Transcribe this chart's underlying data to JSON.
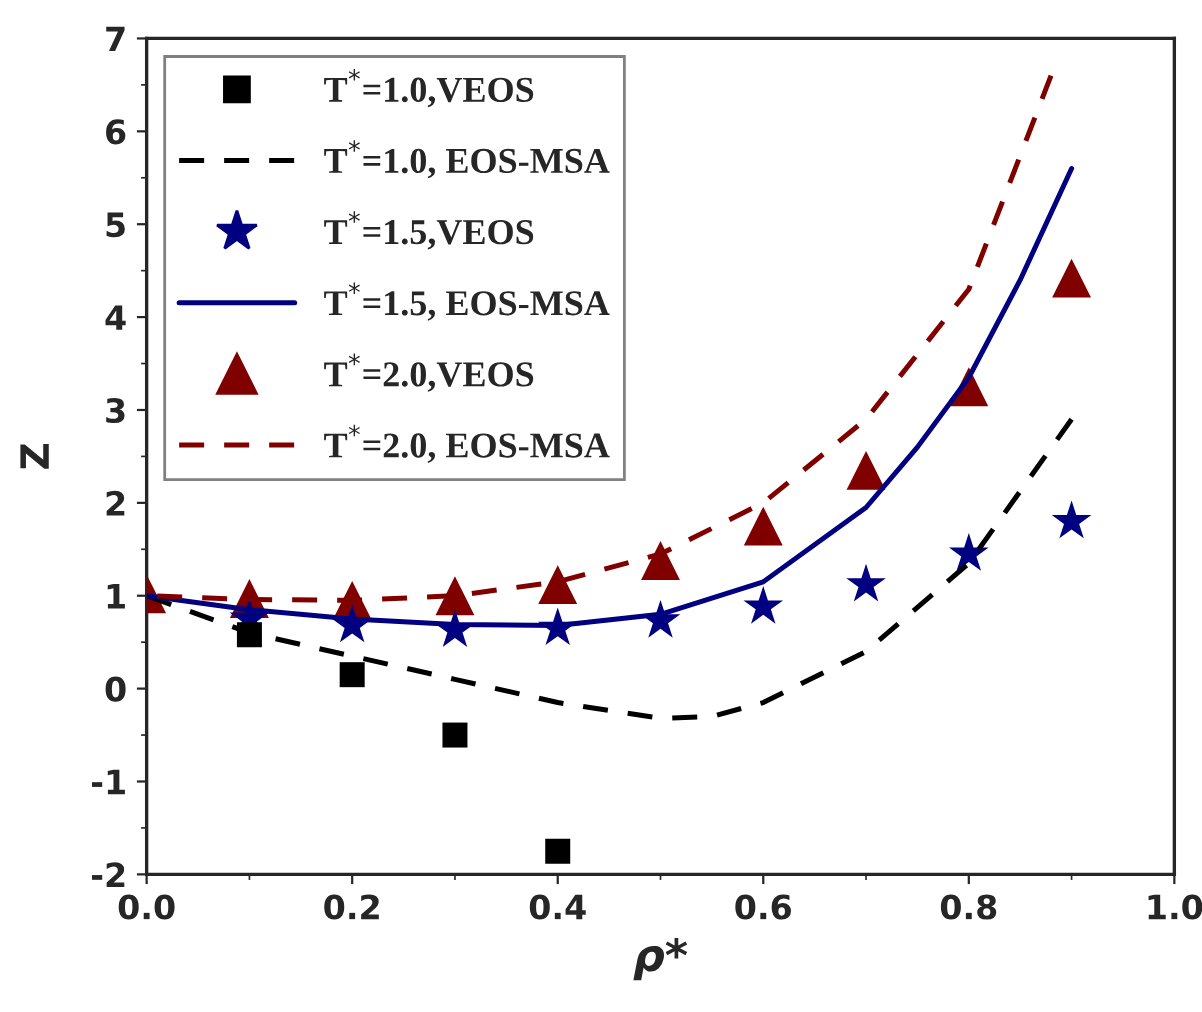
{
  "chart_data": {
    "type": "scatter",
    "xlabel": "ρ*",
    "ylabel": "Z",
    "xlim": [
      0.0,
      1.0
    ],
    "ylim": [
      -2,
      7
    ],
    "xticks": [
      {
        "value": 0.0,
        "label": "0.0"
      },
      {
        "value": 0.2,
        "label": "0.2"
      },
      {
        "value": 0.4,
        "label": "0.4"
      },
      {
        "value": 0.6,
        "label": "0.6"
      },
      {
        "value": 0.8,
        "label": "0.8"
      },
      {
        "value": 1.0,
        "label": "1.0"
      }
    ],
    "yticks": [
      -2,
      -1,
      0,
      1,
      2,
      3,
      4,
      5,
      6,
      7
    ],
    "grid": false,
    "legend": "top left",
    "series": [
      {
        "name": "T$^{*}$=1.0,VEOS",
        "marker": "square",
        "color": "#000000",
        "x": [
          0.1,
          0.2,
          0.3,
          0.4
        ],
        "values": [
          0.58,
          0.15,
          -0.5,
          -1.75
        ]
      },
      {
        "name": "T$^{*}$=1.0, EOS-MSA",
        "type": "line",
        "line_style": "dashed",
        "color": "#000000",
        "x": [
          0.0,
          0.1,
          0.2,
          0.3,
          0.4,
          0.5,
          0.55,
          0.6,
          0.7,
          0.8,
          0.9
        ],
        "values": [
          1.0,
          0.6,
          0.35,
          0.1,
          -0.15,
          -0.32,
          -0.3,
          -0.15,
          0.4,
          1.35,
          2.9
        ]
      },
      {
        "name": "T$^{*}$=1.5,VEOS",
        "marker": "star",
        "color": "#000080",
        "x": [
          0.1,
          0.2,
          0.3,
          0.4,
          0.5,
          0.6,
          0.7,
          0.8,
          0.9
        ],
        "values": [
          0.75,
          0.68,
          0.63,
          0.65,
          0.73,
          0.88,
          1.12,
          1.45,
          1.8
        ]
      },
      {
        "name": "T$^{*}$=1.5, EOS-MSA",
        "type": "line",
        "line_style": "solid",
        "color": "#000080",
        "x": [
          0.0,
          0.1,
          0.2,
          0.3,
          0.4,
          0.5,
          0.6,
          0.7,
          0.75,
          0.8,
          0.85,
          0.9
        ],
        "values": [
          1.0,
          0.85,
          0.75,
          0.69,
          0.68,
          0.8,
          1.15,
          1.95,
          2.6,
          3.35,
          4.4,
          5.6
        ]
      },
      {
        "name": "T$^{*}$=2.0,VEOS",
        "marker": "triangle",
        "color": "#800000",
        "x": [
          0.0,
          0.1,
          0.2,
          0.3,
          0.4,
          0.5,
          0.6,
          0.7,
          0.8,
          0.9
        ],
        "values": [
          1.02,
          0.97,
          0.95,
          1.0,
          1.12,
          1.38,
          1.75,
          2.35,
          3.25,
          4.42
        ]
      },
      {
        "name": "T$^{*}$=2.0, EOS-MSA",
        "type": "line",
        "line_style": "dashed",
        "color": "#800000",
        "x": [
          0.0,
          0.1,
          0.2,
          0.3,
          0.4,
          0.5,
          0.6,
          0.7,
          0.8,
          0.88
        ],
        "values": [
          1.0,
          0.96,
          0.95,
          1.0,
          1.15,
          1.45,
          2.0,
          2.9,
          4.3,
          6.6
        ]
      }
    ]
  }
}
